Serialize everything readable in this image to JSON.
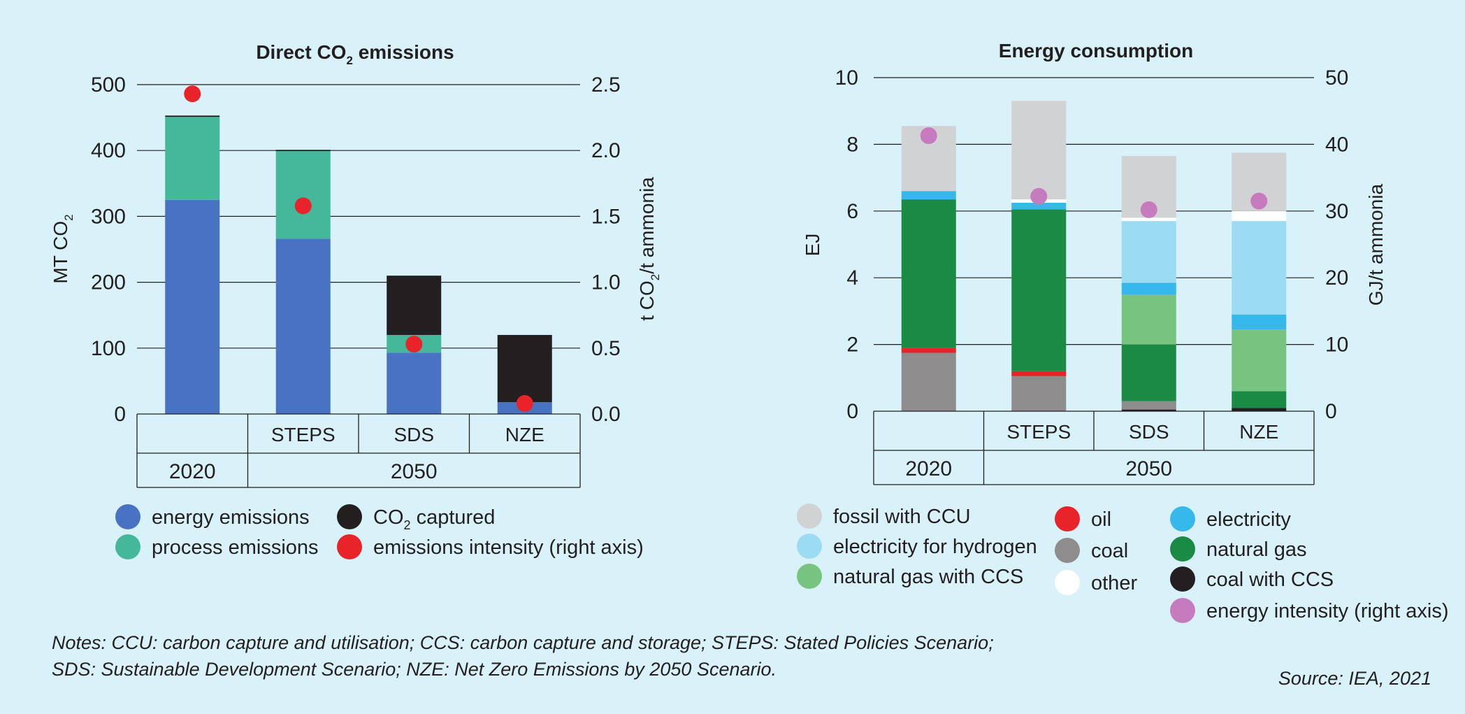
{
  "colors": {
    "background": "#d9f1f8",
    "energy_emissions": "#4a72c2",
    "process_emissions": "#45b89c",
    "co2_captured": "#231f20",
    "emissions_intensity": "#e8232a",
    "fossil_with_ccu": "#d1d2d3",
    "electricity_for_hydrogen": "#9bdcf2",
    "natural_gas_with_ccs": "#76c47f",
    "oil": "#e8232a",
    "coal": "#8e8c8c",
    "other": "#ffffff",
    "electricity": "#36b8ea",
    "natural_gas": "#1b8a45",
    "coal_with_ccs": "#231f20",
    "energy_intensity": "#c77bbf"
  },
  "chart_data": [
    {
      "type": "bar",
      "stacked": true,
      "title_parts": [
        "Direct CO",
        "2",
        " emissions"
      ],
      "ylabel_parts": [
        "MT CO",
        "2"
      ],
      "y2label_parts": [
        "t CO",
        "2",
        "/t ammonia"
      ],
      "ylim": [
        0,
        500
      ],
      "yticks": [
        "0",
        "100",
        "200",
        "300",
        "400",
        "500"
      ],
      "y2lim": [
        0,
        2.5
      ],
      "y2ticks": [
        "0.0",
        "0.5",
        "1.0",
        "1.5",
        "2.0",
        "2.5"
      ],
      "grid": true,
      "categories": [
        "",
        "STEPS",
        "SDS",
        "NZE"
      ],
      "year_groups": [
        {
          "label": "2020",
          "span": 1
        },
        {
          "label": "2050",
          "span": 3
        }
      ],
      "series": [
        {
          "key": "energy",
          "values": [
            325,
            266,
            93,
            18
          ],
          "color": "#4a72c2"
        },
        {
          "key": "process",
          "values": [
            126,
            133,
            27,
            0
          ],
          "color": "#45b89c"
        },
        {
          "key": "captured",
          "values": [
            2,
            2,
            90,
            102
          ],
          "color": "#231f20"
        }
      ],
      "intensity": {
        "key": "intensity",
        "values": [
          2.43,
          1.58,
          0.53,
          0.08
        ],
        "color": "#e8232a"
      },
      "legend": [
        {
          "label": "energy emissions",
          "color": "#4a72c2"
        },
        {
          "label": "process emissions",
          "color": "#45b89c"
        },
        {
          "label_parts": [
            "CO",
            "2",
            " captured"
          ],
          "color": "#231f20"
        },
        {
          "label": "emissions intensity (right axis)",
          "color": "#e8232a"
        }
      ]
    },
    {
      "type": "bar",
      "stacked": true,
      "title": "Energy consumption",
      "ylabel": "EJ",
      "y2label": "GJ/t ammonia",
      "ylim": [
        0,
        10
      ],
      "yticks": [
        "0",
        "2",
        "4",
        "6",
        "8",
        "10"
      ],
      "y2lim": [
        0,
        50
      ],
      "y2ticks": [
        "0",
        "10",
        "20",
        "30",
        "40",
        "50"
      ],
      "grid": true,
      "categories": [
        "",
        "STEPS",
        "SDS",
        "NZE"
      ],
      "year_groups": [
        {
          "label": "2020",
          "span": 1
        },
        {
          "label": "2050",
          "span": 3
        }
      ],
      "series": [
        {
          "key": "coal_ccs",
          "values": [
            0,
            0,
            0.05,
            0.1
          ],
          "color": "#231f20"
        },
        {
          "key": "coal",
          "values": [
            1.75,
            1.05,
            0.25,
            0
          ],
          "color": "#8e8c8c"
        },
        {
          "key": "oil",
          "values": [
            0.15,
            0.15,
            0,
            0
          ],
          "color": "#e8232a"
        },
        {
          "key": "natural_gas",
          "values": [
            4.45,
            4.85,
            1.7,
            0.5
          ],
          "color": "#1b8a45"
        },
        {
          "key": "natural_gas_ccs",
          "values": [
            0,
            0,
            1.5,
            1.85
          ],
          "color": "#76c47f"
        },
        {
          "key": "electricity",
          "values": [
            0.25,
            0.2,
            0.35,
            0.45
          ],
          "color": "#36b8ea"
        },
        {
          "key": "electricity_hydrogen",
          "values": [
            0,
            0,
            1.85,
            2.8
          ],
          "color": "#9bdcf2"
        },
        {
          "key": "other",
          "values": [
            0,
            0.1,
            0.1,
            0.3
          ],
          "color": "#ffffff"
        },
        {
          "key": "fossil_ccu",
          "values": [
            1.95,
            2.95,
            1.85,
            1.75
          ],
          "color": "#d1d2d3"
        }
      ],
      "intensity": {
        "key": "intensity",
        "values": [
          41.3,
          32.2,
          30.2,
          31.5
        ],
        "color": "#c77bbf"
      },
      "legend": [
        {
          "label": "fossil with CCU",
          "color": "#d1d2d3"
        },
        {
          "label": "electricity for hydrogen",
          "color": "#9bdcf2"
        },
        {
          "label": "natural gas with CCS",
          "color": "#76c47f"
        },
        {
          "label": "oil",
          "color": "#e8232a"
        },
        {
          "label": "coal",
          "color": "#8e8c8c"
        },
        {
          "label": "other",
          "color": "#ffffff"
        },
        {
          "label": "electricity",
          "color": "#36b8ea"
        },
        {
          "label": "natural gas",
          "color": "#1b8a45"
        },
        {
          "label": "coal with CCS",
          "color": "#231f20"
        },
        {
          "label": "energy intensity (right axis)",
          "color": "#c77bbf"
        }
      ]
    }
  ],
  "notes": {
    "line1": "Notes: CCU: carbon capture and utilisation; CCS: carbon capture and storage; STEPS: Stated Policies Scenario;",
    "line2": "SDS: Sustainable Development Scenario; NZE: Net Zero Emissions by 2050 Scenario."
  },
  "source": "Source: IEA, 2021"
}
